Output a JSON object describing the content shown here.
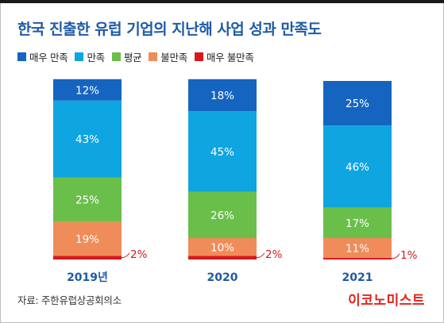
{
  "title": "한국 진출한 유럽 기업의 지난해 사업 성과 만족도",
  "legend": [
    {
      "label": "매우 만족",
      "color": "#1565c0"
    },
    {
      "label": "만족",
      "color": "#0ea5e0"
    },
    {
      "label": "평균",
      "color": "#6abf4b"
    },
    {
      "label": "불만족",
      "color": "#f08c5a"
    },
    {
      "label": "매우 불만족",
      "color": "#d7191c"
    }
  ],
  "source": "자료: 주한유럽상공회의소",
  "brand": "이코노미스트",
  "chart_data": {
    "type": "bar",
    "stacked": true,
    "categories": [
      "2019년",
      "2020",
      "2021"
    ],
    "series": [
      {
        "name": "매우 만족",
        "values": [
          12,
          18,
          25
        ],
        "labels": [
          "12%",
          "18%",
          "25%"
        ],
        "color": "#1565c0"
      },
      {
        "name": "만족",
        "values": [
          43,
          45,
          46
        ],
        "labels": [
          "43%",
          "45%",
          "46%"
        ],
        "color": "#0ea5e0"
      },
      {
        "name": "평균",
        "values": [
          25,
          26,
          17
        ],
        "labels": [
          "25%",
          "26%",
          "17%"
        ],
        "color": "#6abf4b"
      },
      {
        "name": "불만족",
        "values": [
          19,
          10,
          11
        ],
        "labels": [
          "19%",
          "10%",
          "11%"
        ],
        "color": "#f08c5a"
      },
      {
        "name": "매우 불만족",
        "values": [
          2,
          2,
          1
        ],
        "labels": [
          "2%",
          "2%",
          "1%"
        ],
        "color": "#d7191c"
      }
    ],
    "ylim": [
      0,
      100
    ],
    "grid": false,
    "legend_position": "top-left"
  }
}
